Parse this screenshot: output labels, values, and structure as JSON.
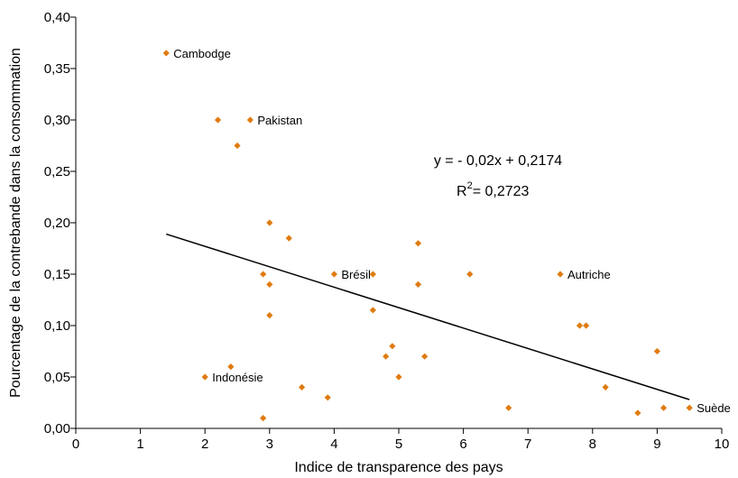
{
  "chart_data": {
    "type": "scatter",
    "xlabel": "Indice de transparence des pays",
    "ylabel": "Pourcentage de la contrebande dans la consommation",
    "xlim": [
      0,
      10
    ],
    "ylim": [
      0,
      0.4
    ],
    "x_ticks": [
      "0",
      "1",
      "2",
      "3",
      "4",
      "5",
      "6",
      "7",
      "8",
      "9",
      "10"
    ],
    "y_ticks": [
      "0,00",
      "0,05",
      "0,10",
      "0,15",
      "0,20",
      "0,25",
      "0,30",
      "0,35",
      "0,40"
    ],
    "grid": false,
    "marker_color": "#E07B10",
    "points": [
      {
        "x": 1.4,
        "y": 0.365
      },
      {
        "x": 2.2,
        "y": 0.3
      },
      {
        "x": 2.7,
        "y": 0.3
      },
      {
        "x": 2.5,
        "y": 0.275
      },
      {
        "x": 3.0,
        "y": 0.2
      },
      {
        "x": 3.3,
        "y": 0.185
      },
      {
        "x": 5.3,
        "y": 0.18
      },
      {
        "x": 2.9,
        "y": 0.15
      },
      {
        "x": 4.0,
        "y": 0.15
      },
      {
        "x": 4.6,
        "y": 0.15
      },
      {
        "x": 6.1,
        "y": 0.15
      },
      {
        "x": 7.5,
        "y": 0.15
      },
      {
        "x": 3.0,
        "y": 0.14
      },
      {
        "x": 5.3,
        "y": 0.14
      },
      {
        "x": 4.6,
        "y": 0.115
      },
      {
        "x": 3.0,
        "y": 0.11
      },
      {
        "x": 7.8,
        "y": 0.1
      },
      {
        "x": 7.9,
        "y": 0.1
      },
      {
        "x": 4.9,
        "y": 0.08
      },
      {
        "x": 9.0,
        "y": 0.075
      },
      {
        "x": 4.8,
        "y": 0.07
      },
      {
        "x": 5.4,
        "y": 0.07
      },
      {
        "x": 2.4,
        "y": 0.06
      },
      {
        "x": 2.0,
        "y": 0.05
      },
      {
        "x": 5.0,
        "y": 0.05
      },
      {
        "x": 3.5,
        "y": 0.04
      },
      {
        "x": 8.2,
        "y": 0.04
      },
      {
        "x": 3.9,
        "y": 0.03
      },
      {
        "x": 6.7,
        "y": 0.02
      },
      {
        "x": 9.1,
        "y": 0.02
      },
      {
        "x": 9.5,
        "y": 0.02
      },
      {
        "x": 8.7,
        "y": 0.015
      },
      {
        "x": 2.9,
        "y": 0.01
      }
    ],
    "annotations": [
      {
        "text": "Cambodge",
        "x": 1.4,
        "y": 0.365
      },
      {
        "text": "Pakistan",
        "x": 2.7,
        "y": 0.3
      },
      {
        "text": "Brésil",
        "x": 4.0,
        "y": 0.15
      },
      {
        "text": "Autriche",
        "x": 7.5,
        "y": 0.15
      },
      {
        "text": "Indonésie",
        "x": 2.0,
        "y": 0.05
      },
      {
        "text": "Suède",
        "x": 9.5,
        "y": 0.02
      }
    ],
    "trendline": {
      "x_start": 1.4,
      "x_end": 9.5,
      "y_start": 0.189,
      "y_end": 0.028,
      "equation": "y = - 0,02x + 0,2174",
      "r2_prefix": "R",
      "r2_sup": "2",
      "r2_value": "= 0,2723"
    }
  }
}
